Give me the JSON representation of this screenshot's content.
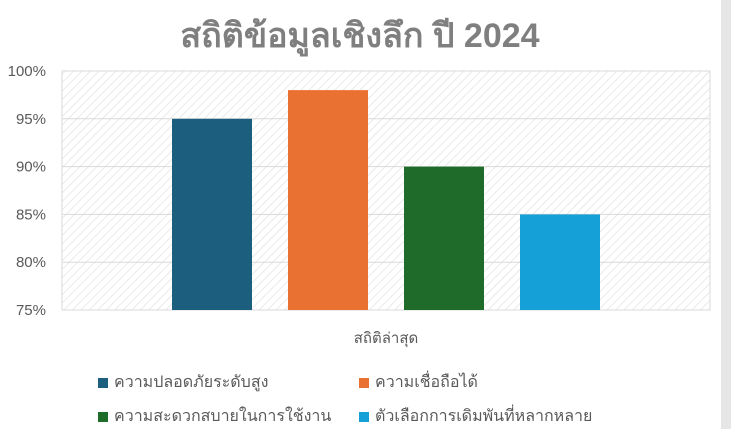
{
  "chart_data": {
    "type": "bar",
    "title": "สถิติข้อมูลเชิงลึก ปี 2024",
    "categories": [
      "สถิติล่าสุด"
    ],
    "series": [
      {
        "name": "ความปลอดภัยระดับสูง",
        "values": [
          95
        ],
        "color": "#1b5e7e"
      },
      {
        "name": "ความเชื่อถือได้",
        "values": [
          98
        ],
        "color": "#e97132"
      },
      {
        "name": "ความสะดวกสบายในการใช้งาน",
        "values": [
          90
        ],
        "color": "#1e6b2a"
      },
      {
        "name": "ตัวเลือกการเดิมพันที่หลากหลาย",
        "values": [
          85
        ],
        "color": "#15a0d8"
      }
    ],
    "ylim": [
      75,
      100
    ],
    "yticks": [
      "75%",
      "80%",
      "85%",
      "90%",
      "95%",
      "100%"
    ],
    "grid": true,
    "legend": "bottom"
  }
}
